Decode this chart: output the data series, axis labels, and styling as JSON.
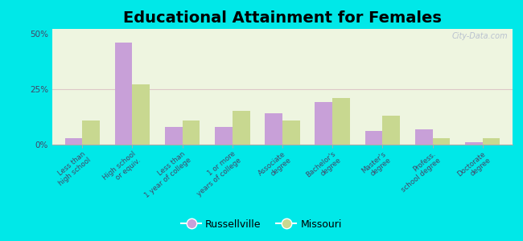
{
  "title": "Educational Attainment for Females",
  "categories": [
    "Less than\nhigh school",
    "High school\nor equiv.",
    "Less than\n1 year of college",
    "1 or more\nyears of college",
    "Associate\ndegree",
    "Bachelor's\ndegree",
    "Master's\ndegree",
    "Profess.\nschool degree",
    "Doctorate\ndegree"
  ],
  "russellville": [
    3,
    46,
    8,
    8,
    14,
    19,
    6,
    7,
    1
  ],
  "missouri": [
    11,
    27,
    11,
    15,
    11,
    21,
    13,
    3,
    3
  ],
  "russellville_color": "#c8a0d8",
  "missouri_color": "#c8d890",
  "background_color": "#00e8e8",
  "plot_bg": "#eef5e0",
  "ylim": [
    0,
    52
  ],
  "yticks": [
    0,
    25,
    50
  ],
  "ytick_labels": [
    "0%",
    "25%",
    "50%"
  ],
  "bar_width": 0.35,
  "title_fontsize": 14,
  "legend_labels": [
    "Russellville",
    "Missouri"
  ],
  "gridline_color": "#ddc8c8",
  "watermark": "City-Data.com"
}
